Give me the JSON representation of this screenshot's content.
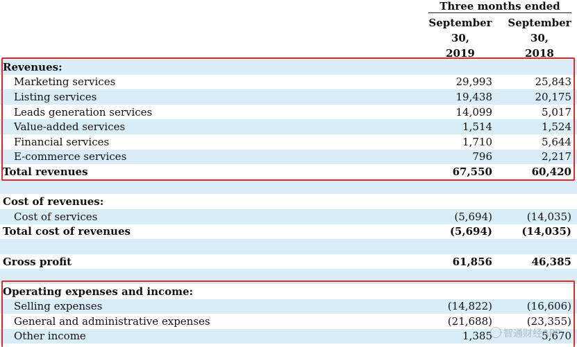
{
  "header": {
    "group_title": "Three months ended",
    "col1": {
      "line1": "September",
      "line2": "30,",
      "line3": "2019"
    },
    "col2": {
      "line1": "September",
      "line2": "30,",
      "line3": "2018"
    }
  },
  "rows": [
    {
      "label": "Revenues:",
      "v1": "",
      "v2": "",
      "style": "section",
      "shade": true
    },
    {
      "label": "Marketing services",
      "v1": "29,993",
      "v2": "25,843",
      "style": "item",
      "shade": false
    },
    {
      "label": "Listing services",
      "v1": "19,438",
      "v2": "20,175",
      "style": "item",
      "shade": true
    },
    {
      "label": "Leads generation services",
      "v1": "14,099",
      "v2": "5,017",
      "style": "item",
      "shade": false
    },
    {
      "label": "Value-added services",
      "v1": "1,514",
      "v2": "1,524",
      "style": "item",
      "shade": true
    },
    {
      "label": "Financial services",
      "v1": "1,710",
      "v2": "5,644",
      "style": "item",
      "shade": false
    },
    {
      "label": "E-commerce services",
      "v1": "796",
      "v2": "2,217",
      "style": "item",
      "shade": true
    },
    {
      "label": "Total revenues",
      "v1": "67,550",
      "v2": "60,420",
      "style": "total",
      "shade": false
    },
    {
      "label": "",
      "v1": "",
      "v2": "",
      "style": "gap",
      "shade": true
    },
    {
      "label": "Cost of revenues:",
      "v1": "",
      "v2": "",
      "style": "section",
      "shade": false
    },
    {
      "label": "Cost of services",
      "v1": "(5,694)",
      "v2": "(14,035)",
      "style": "item",
      "shade": true
    },
    {
      "label": "Total cost of revenues",
      "v1": "(5,694)",
      "v2": "(14,035)",
      "style": "total",
      "shade": false
    },
    {
      "label": "",
      "v1": "",
      "v2": "",
      "style": "gap",
      "shade": true
    },
    {
      "label": "Gross profit",
      "v1": "61,856",
      "v2": "46,385",
      "style": "total",
      "shade": false
    },
    {
      "label": "",
      "v1": "",
      "v2": "",
      "style": "gap",
      "shade": true
    },
    {
      "label": "Operating expenses and income:",
      "v1": "",
      "v2": "",
      "style": "section",
      "shade": false
    },
    {
      "label": "Selling expenses",
      "v1": "(14,822)",
      "v2": "(16,606)",
      "style": "item",
      "shade": true
    },
    {
      "label": "General and administrative expenses",
      "v1": "(21,688)",
      "v2": "(23,355)",
      "style": "item",
      "shade": false
    },
    {
      "label": "Other income",
      "v1": "1,385",
      "v2": "5,670",
      "style": "item",
      "shade": true
    }
  ],
  "watermark": "智通财经APP",
  "colors": {
    "shade": "#d8edf8",
    "highlight_box": "#e0282a"
  }
}
